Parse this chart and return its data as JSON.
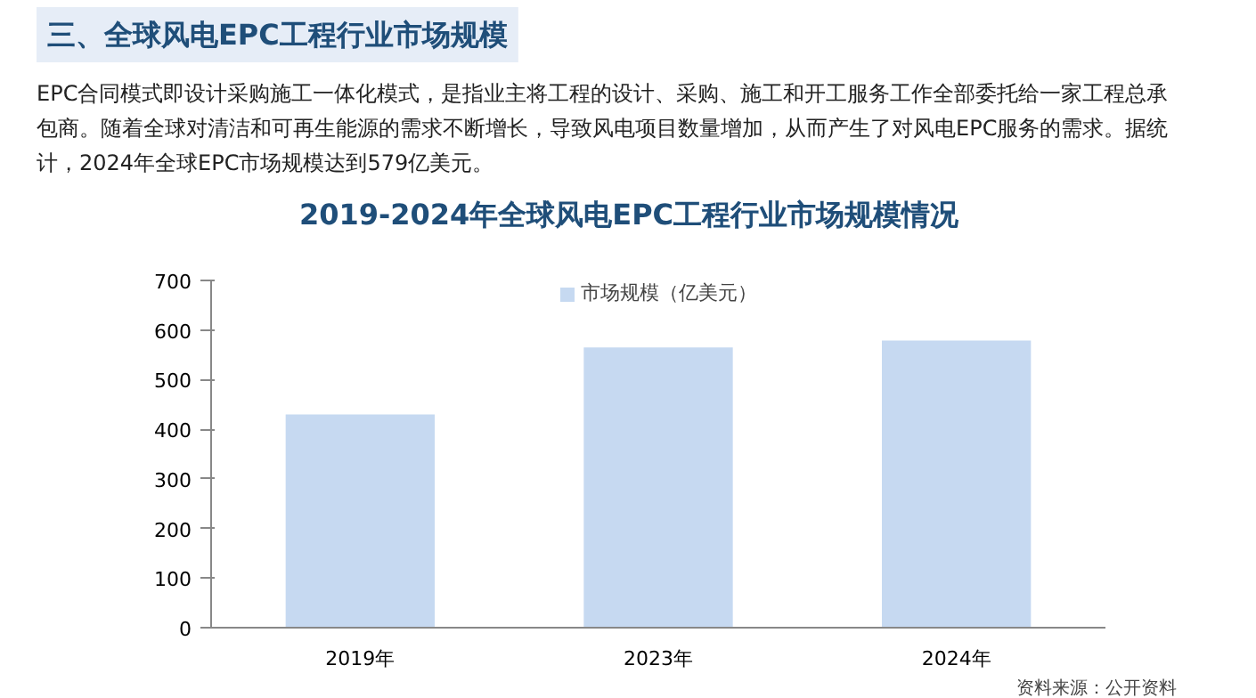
{
  "chart_data": {
    "type": "bar",
    "title": "2019-2024年全球风电EPC工程行业市场规模情况",
    "subtitle": "EPC合同模式即设计采购施工一体化模式，是指业主将工程的设计、采购、施工和开工服务工作全部委托给一家工程总承包商。随着全球对清洁和可再生能源的需求不断增长，导致风电项目数量增加，从而产生了对风电EPC服务的需求。据统计，2024年全球EPC市场规模达到579亿美元。",
    "annotations": [
      "三、全球风电EPC工程行业市场规模",
      "资料来源：公开资料"
    ],
    "categories": [
      "2019年",
      "2023年",
      "2024年"
    ],
    "series": [
      {
        "name": "市场规模（亿美元）",
        "color": "#c6d9f1",
        "values": [
          430,
          565,
          579
        ]
      }
    ],
    "ylim": [
      0,
      700
    ],
    "yticks": [
      0,
      100,
      200,
      300,
      400,
      500,
      600,
      700
    ],
    "grid": false,
    "legend": "top"
  }
}
